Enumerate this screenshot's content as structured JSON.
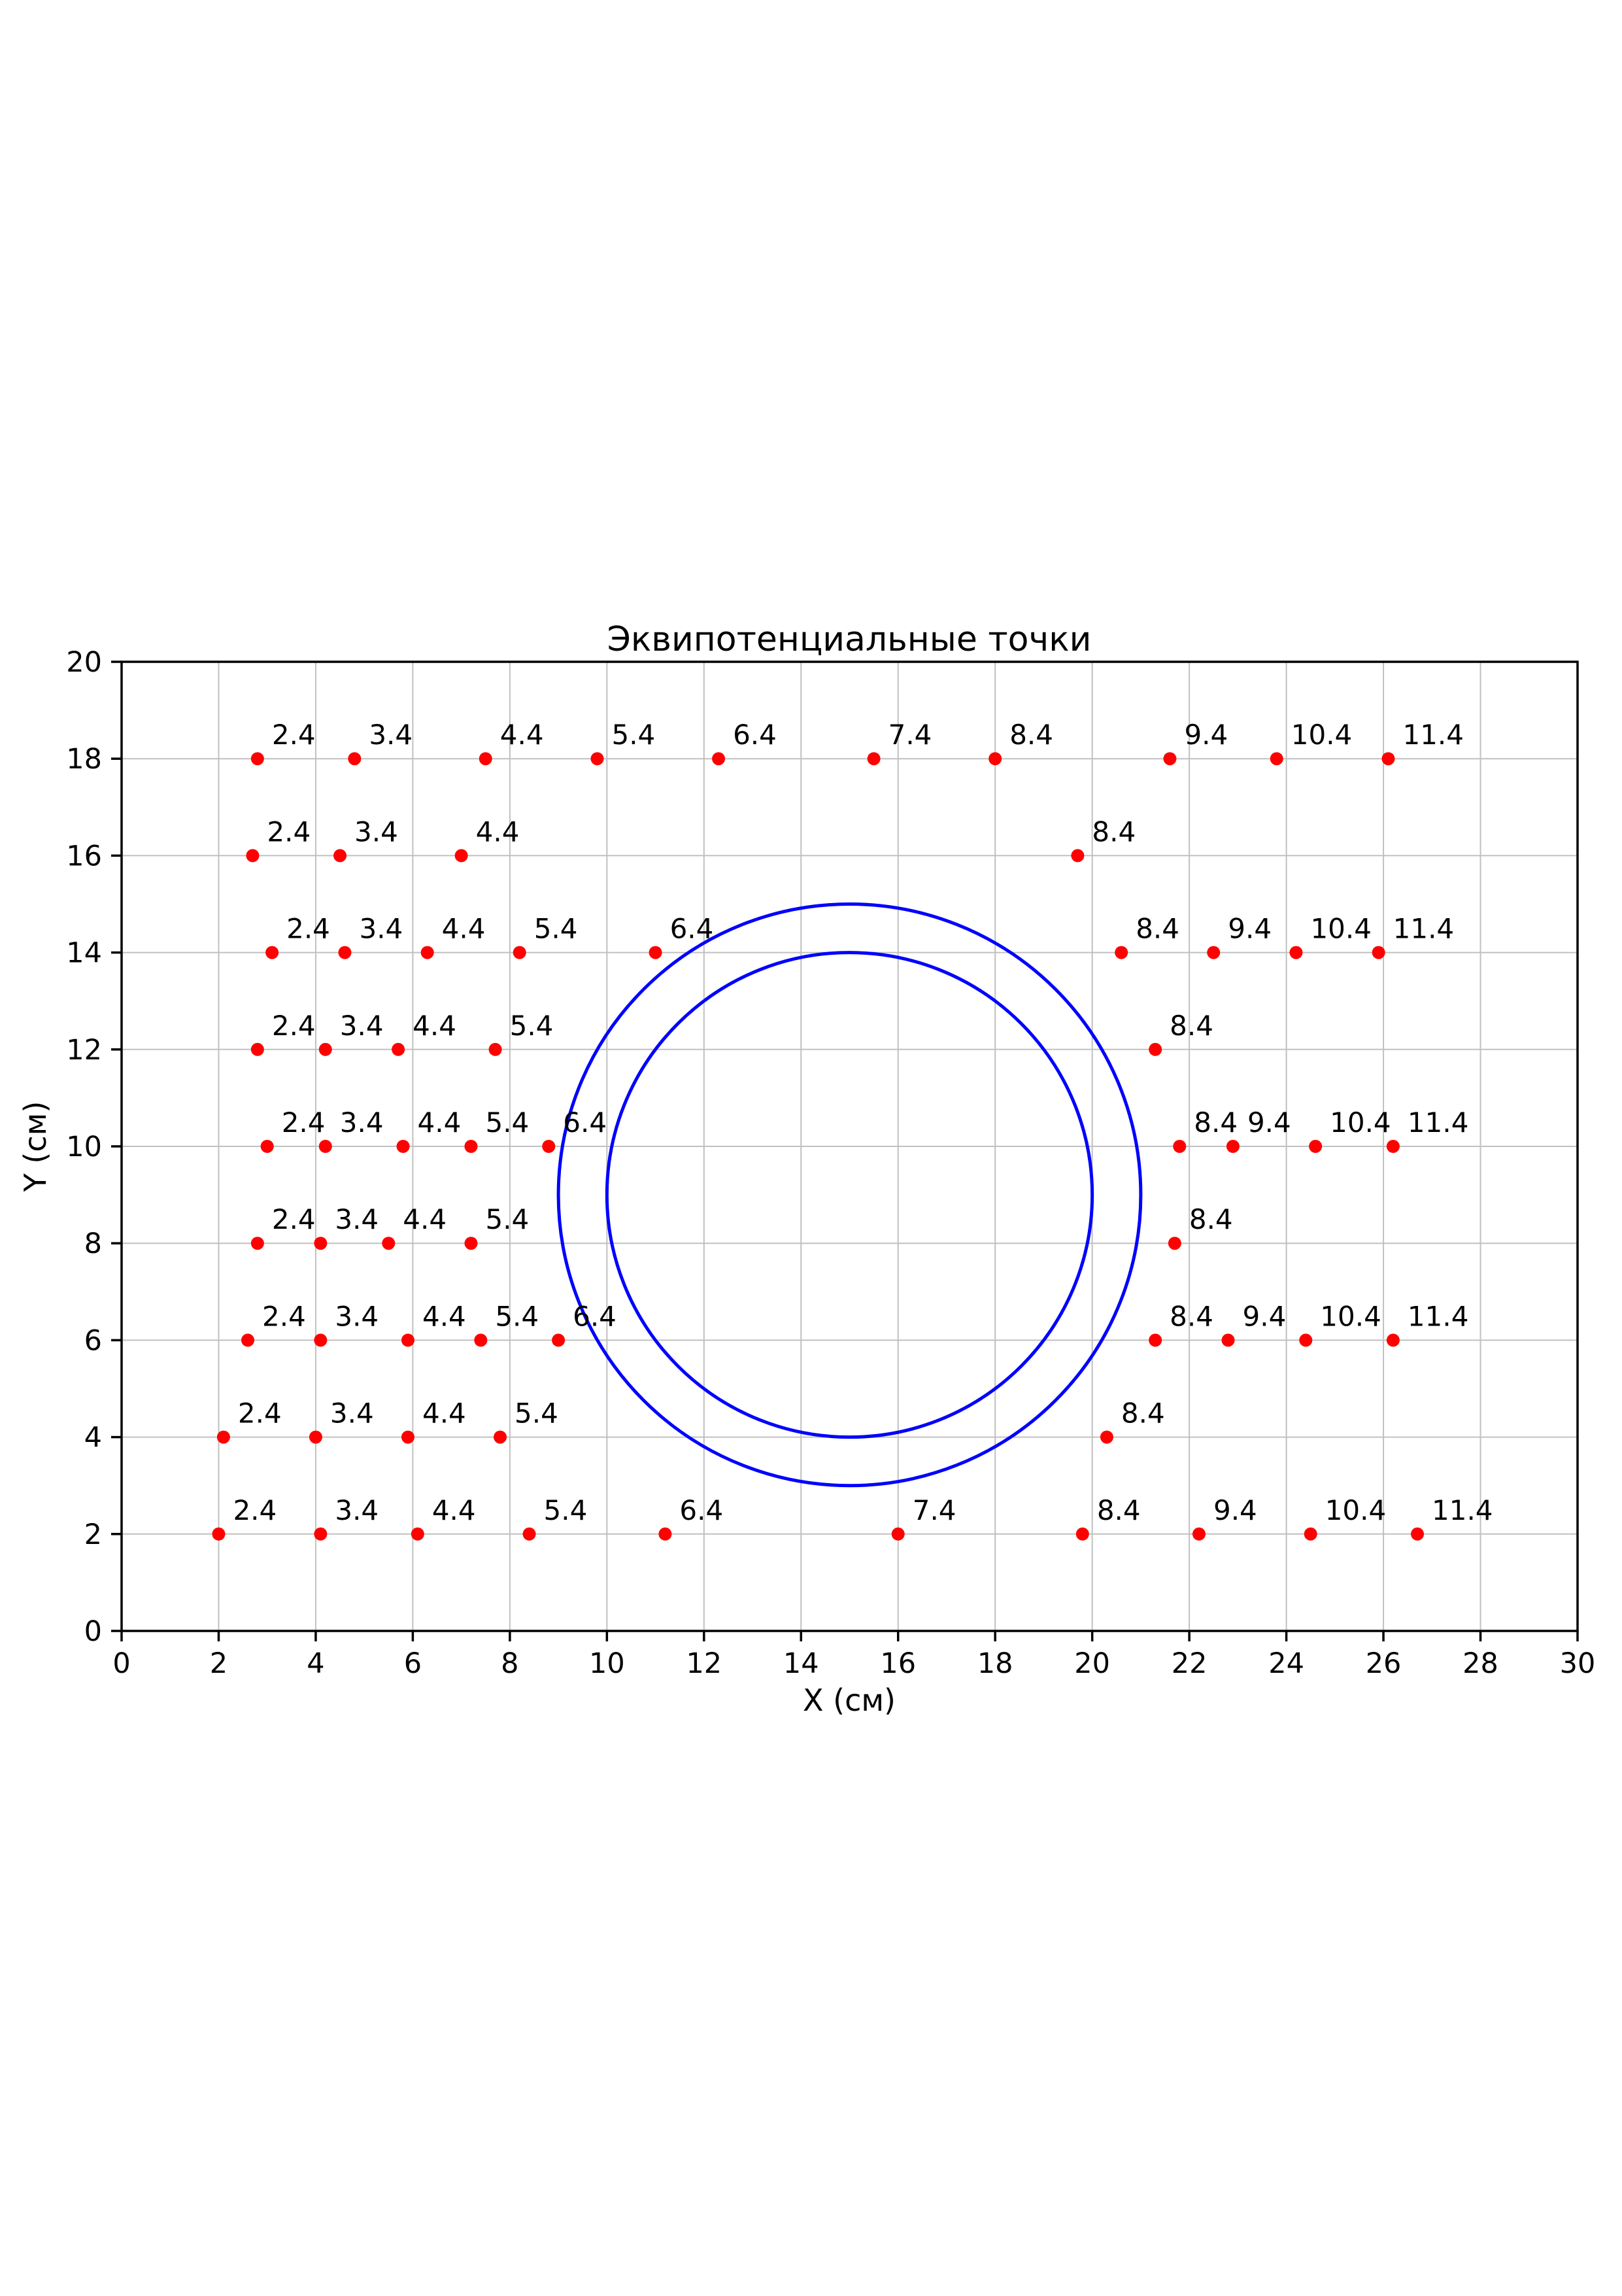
{
  "title": "Эквипотенциальные точки",
  "chart_data": {
    "type": "scatter",
    "title": "Эквипотенциальные точки",
    "xlabel": "X (см)",
    "ylabel": "Y (см)",
    "xlim": [
      0,
      30
    ],
    "ylim": [
      0,
      20
    ],
    "xticks": [
      0,
      2,
      4,
      6,
      8,
      10,
      12,
      14,
      16,
      18,
      20,
      22,
      24,
      26,
      28,
      30
    ],
    "yticks": [
      0,
      2,
      4,
      6,
      8,
      10,
      12,
      14,
      16,
      18,
      20
    ],
    "grid": true,
    "legend": "none",
    "colors": {
      "points": "#ff0000",
      "circles": "#0000ff",
      "grid": "#c0c0c0",
      "axis": "#000000",
      "background": "#ffffff"
    },
    "circles": [
      {
        "cx": 15,
        "cy": 9,
        "r": 6
      },
      {
        "cx": 15,
        "cy": 9,
        "r": 5
      }
    ],
    "rows": [
      {
        "y": 18,
        "points": [
          {
            "x": 2.8,
            "label": "2.4"
          },
          {
            "x": 4.8,
            "label": "3.4"
          },
          {
            "x": 7.5,
            "label": "4.4"
          },
          {
            "x": 9.8,
            "label": "5.4"
          },
          {
            "x": 12.3,
            "label": "6.4"
          },
          {
            "x": 15.5,
            "label": "7.4"
          },
          {
            "x": 18.0,
            "label": "8.4"
          },
          {
            "x": 21.6,
            "label": "9.4"
          },
          {
            "x": 23.8,
            "label": "10.4"
          },
          {
            "x": 26.1,
            "label": "11.4"
          }
        ]
      },
      {
        "y": 16,
        "points": [
          {
            "x": 2.7,
            "label": "2.4"
          },
          {
            "x": 4.5,
            "label": "3.4"
          },
          {
            "x": 7.0,
            "label": "4.4"
          },
          {
            "x": 19.7,
            "label": "8.4"
          }
        ]
      },
      {
        "y": 14,
        "points": [
          {
            "x": 3.1,
            "label": "2.4"
          },
          {
            "x": 4.6,
            "label": "3.4"
          },
          {
            "x": 6.3,
            "label": "4.4"
          },
          {
            "x": 8.2,
            "label": "5.4"
          },
          {
            "x": 11.0,
            "label": "6.4"
          },
          {
            "x": 20.6,
            "label": "8.4"
          },
          {
            "x": 22.5,
            "label": "9.4"
          },
          {
            "x": 24.2,
            "label": "10.4"
          },
          {
            "x": 25.9,
            "label": "11.4"
          }
        ]
      },
      {
        "y": 12,
        "points": [
          {
            "x": 2.8,
            "label": "2.4"
          },
          {
            "x": 4.2,
            "label": "3.4"
          },
          {
            "x": 5.7,
            "label": "4.4"
          },
          {
            "x": 7.7,
            "label": "5.4"
          },
          {
            "x": 21.3,
            "label": "8.4"
          }
        ]
      },
      {
        "y": 10,
        "points": [
          {
            "x": 3.0,
            "label": "2.4"
          },
          {
            "x": 4.2,
            "label": "3.4"
          },
          {
            "x": 5.8,
            "label": "4.4"
          },
          {
            "x": 7.2,
            "label": "5.4"
          },
          {
            "x": 8.8,
            "label": "6.4"
          },
          {
            "x": 21.8,
            "label": "8.4"
          },
          {
            "x": 22.9,
            "label": "9.4"
          },
          {
            "x": 24.6,
            "label": "10.4"
          },
          {
            "x": 26.2,
            "label": "11.4"
          }
        ]
      },
      {
        "y": 8,
        "points": [
          {
            "x": 2.8,
            "label": "2.4"
          },
          {
            "x": 4.1,
            "label": "3.4"
          },
          {
            "x": 5.5,
            "label": "4.4"
          },
          {
            "x": 7.2,
            "label": "5.4"
          },
          {
            "x": 21.7,
            "label": "8.4"
          }
        ]
      },
      {
        "y": 6,
        "points": [
          {
            "x": 2.6,
            "label": "2.4"
          },
          {
            "x": 4.1,
            "label": "3.4"
          },
          {
            "x": 5.9,
            "label": "4.4"
          },
          {
            "x": 7.4,
            "label": "5.4"
          },
          {
            "x": 9.0,
            "label": "6.4"
          },
          {
            "x": 21.3,
            "label": "8.4"
          },
          {
            "x": 22.8,
            "label": "9.4"
          },
          {
            "x": 24.4,
            "label": "10.4"
          },
          {
            "x": 26.2,
            "label": "11.4"
          }
        ]
      },
      {
        "y": 4,
        "points": [
          {
            "x": 2.1,
            "label": "2.4"
          },
          {
            "x": 4.0,
            "label": "3.4"
          },
          {
            "x": 5.9,
            "label": "4.4"
          },
          {
            "x": 7.8,
            "label": "5.4"
          },
          {
            "x": 20.3,
            "label": "8.4"
          }
        ]
      },
      {
        "y": 2,
        "points": [
          {
            "x": 2.0,
            "label": "2.4"
          },
          {
            "x": 4.1,
            "label": "3.4"
          },
          {
            "x": 6.1,
            "label": "4.4"
          },
          {
            "x": 8.4,
            "label": "5.4"
          },
          {
            "x": 11.2,
            "label": "6.4"
          },
          {
            "x": 16.0,
            "label": "7.4"
          },
          {
            "x": 19.8,
            "label": "8.4"
          },
          {
            "x": 22.2,
            "label": "9.4"
          },
          {
            "x": 24.5,
            "label": "10.4"
          },
          {
            "x": 26.7,
            "label": "11.4"
          }
        ]
      }
    ]
  }
}
